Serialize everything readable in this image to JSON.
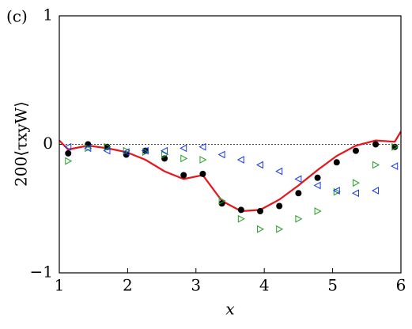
{
  "chart_data": {
    "type": "scatter",
    "annotation": "(c)",
    "xlabel": "x",
    "ylabel": "200⟨τxyW⟩",
    "xlim": [
      1,
      6
    ],
    "ylim": [
      -1,
      1
    ],
    "xticks": [
      1,
      2,
      3,
      4,
      5,
      6
    ],
    "yticks": [
      {
        "value": -1,
        "label": "−1"
      },
      0,
      1
    ],
    "reference_line": 0,
    "series": [
      {
        "kind": "line",
        "color": "#e8141b",
        "x": [
          1.0,
          1.13,
          1.42,
          1.7,
          1.98,
          2.26,
          2.54,
          2.82,
          3.1,
          3.38,
          3.66,
          3.94,
          4.22,
          4.5,
          4.78,
          5.06,
          5.34,
          5.63,
          5.91,
          6.0
        ],
        "values": [
          0.03,
          -0.04,
          -0.01,
          -0.03,
          -0.06,
          -0.12,
          -0.21,
          -0.27,
          -0.24,
          -0.44,
          -0.52,
          -0.51,
          -0.43,
          -0.32,
          -0.2,
          -0.09,
          -0.01,
          0.03,
          0.02,
          0.1
        ]
      },
      {
        "kind": "dot",
        "color": "#000000",
        "x": [
          1.13,
          1.42,
          1.7,
          1.98,
          2.26,
          2.54,
          2.82,
          3.1,
          3.38,
          3.66,
          3.94,
          4.22,
          4.5,
          4.78,
          5.06,
          5.34,
          5.63,
          5.91
        ],
        "values": [
          -0.07,
          0,
          -0.02,
          -0.08,
          -0.05,
          -0.11,
          -0.24,
          -0.23,
          -0.46,
          -0.51,
          -0.52,
          -0.48,
          -0.38,
          -0.26,
          -0.14,
          -0.05,
          0,
          -0.02
        ]
      },
      {
        "kind": "triangle-right",
        "color": "#2ca02c",
        "x": [
          1.13,
          1.42,
          1.7,
          1.98,
          2.26,
          2.54,
          2.82,
          3.1,
          3.38,
          3.66,
          3.94,
          4.22,
          4.5,
          4.78,
          5.06,
          5.34,
          5.63,
          5.91
        ],
        "values": [
          -0.13,
          -0.03,
          -0.02,
          -0.05,
          -0.06,
          -0.08,
          -0.11,
          -0.12,
          -0.44,
          -0.58,
          -0.66,
          -0.66,
          -0.58,
          -0.52,
          -0.37,
          -0.3,
          -0.16,
          -0.02
        ]
      },
      {
        "kind": "triangle-left",
        "color": "#1f3fe0",
        "x": [
          1.13,
          1.42,
          1.7,
          1.98,
          2.26,
          2.54,
          2.82,
          3.1,
          3.38,
          3.66,
          3.94,
          4.22,
          4.5,
          4.78,
          5.06,
          5.34,
          5.63,
          5.91
        ],
        "values": [
          -0.02,
          -0.03,
          -0.05,
          -0.06,
          -0.05,
          -0.05,
          -0.03,
          -0.02,
          -0.08,
          -0.12,
          -0.16,
          -0.21,
          -0.27,
          -0.32,
          -0.36,
          -0.38,
          -0.36,
          -0.17
        ]
      }
    ]
  }
}
